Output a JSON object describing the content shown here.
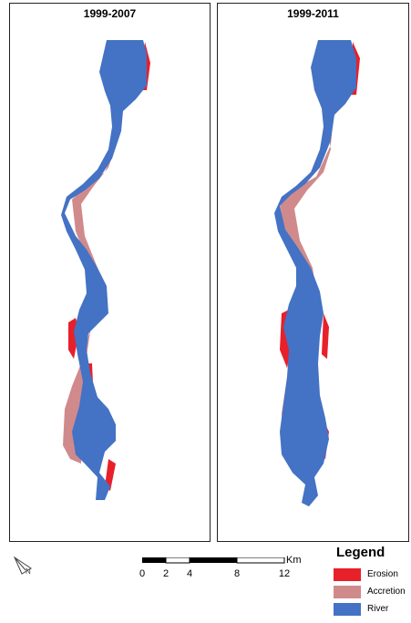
{
  "panels": [
    {
      "title": "1999-2007"
    },
    {
      "title": "1999-2011"
    }
  ],
  "scalebar": {
    "labels": [
      "0",
      "2",
      "4",
      "8",
      "12"
    ],
    "unit": "Km"
  },
  "legend": {
    "title": "Legend",
    "items": [
      {
        "label": "Erosion",
        "color": "#e8202a"
      },
      {
        "label": "Accretion",
        "color": "#d08a8c"
      },
      {
        "label": "River",
        "color": "#4472c4"
      }
    ]
  },
  "north_arrow": {
    "icon": "north-arrow-icon"
  }
}
